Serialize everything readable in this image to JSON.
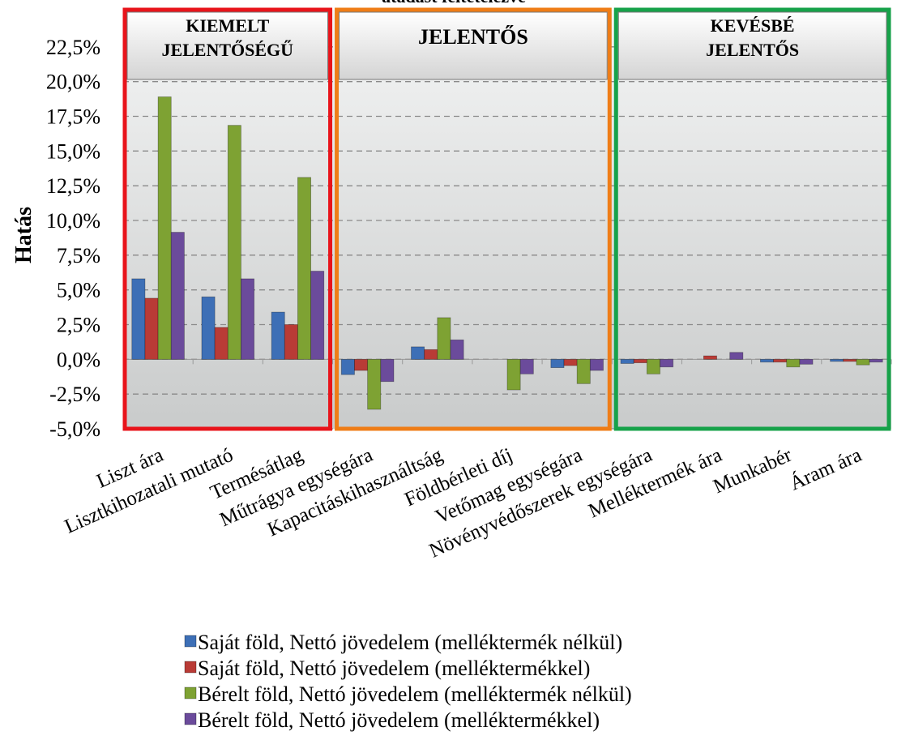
{
  "chart_data": {
    "type": "bar",
    "title": "átadást feltételezve",
    "y_label": "Hatás",
    "categories": [
      "Liszt ára",
      "Lisztkihozatali mutató",
      "Termésátlag",
      "Műtrágya egységára",
      "Kapacitáskihasználtság",
      "Földbérleti díj",
      "Vetőmag egységára",
      "Növényvédőszerek egységára",
      "Melléktermék ára",
      "Munkabér",
      "Áram ára"
    ],
    "series": [
      {
        "name": "Saját föld, Nettó jövedelem (melléktermék nélkül)",
        "color": "#3d6fb6",
        "values": [
          5.8,
          4.5,
          3.4,
          -1.1,
          0.9,
          0,
          -0.6,
          -0.3,
          0,
          -0.2,
          -0.15
        ]
      },
      {
        "name": "Saját föld, Nettó jövedelem (melléktermékkel)",
        "color": "#b93b36",
        "values": [
          4.4,
          2.3,
          2.5,
          -0.8,
          0.7,
          0,
          -0.45,
          -0.25,
          0.25,
          -0.2,
          -0.15
        ]
      },
      {
        "name": "Bérelt föld, Nettó jövedelem (melléktermék nélkül)",
        "color": "#7ea233",
        "values": [
          18.9,
          16.85,
          13.1,
          -3.6,
          3.0,
          -2.2,
          -1.75,
          -1.05,
          0,
          -0.55,
          -0.4
        ]
      },
      {
        "name": "Bérelt föld, Nettó jövedelem (melléktermékkel)",
        "color": "#6b4b9b",
        "values": [
          9.15,
          5.8,
          6.35,
          -1.6,
          1.4,
          -1.05,
          -0.8,
          -0.55,
          0.5,
          -0.35,
          -0.2
        ]
      }
    ],
    "groups": [
      {
        "lines": [
          "KIEMELT",
          "JELENTŐSÉGŰ"
        ],
        "color": "#e8141b"
      },
      {
        "lines": [
          "JELENTŐS"
        ],
        "color": "#ef7d17"
      },
      {
        "lines": [
          "KEVÉSBÉ",
          "JELENTŐS"
        ],
        "color": "#17a24a"
      }
    ],
    "ylim": [
      -5,
      25
    ],
    "yticks": [
      {
        "value": -5,
        "label": "-5,0%"
      },
      {
        "value": -2.5,
        "label": "-2,5%"
      },
      {
        "value": 0,
        "label": "0,0%"
      },
      {
        "value": 2.5,
        "label": "2,5%"
      },
      {
        "value": 5,
        "label": "5,0%"
      },
      {
        "value": 7.5,
        "label": "7,5%"
      },
      {
        "value": 10,
        "label": "10,0%"
      },
      {
        "value": 12.5,
        "label": "12,5%"
      },
      {
        "value": 15,
        "label": "15,0%"
      },
      {
        "value": 17.5,
        "label": "17,5%"
      },
      {
        "value": 20,
        "label": "20,0%"
      },
      {
        "value": 22.5,
        "label": "22,5%"
      }
    ],
    "grid": true
  }
}
